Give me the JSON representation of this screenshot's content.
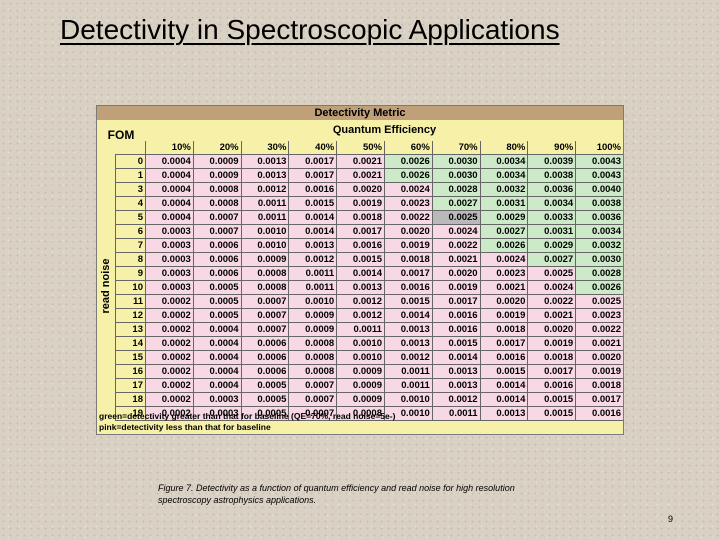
{
  "slide": {
    "title": "Detectivity in Spectroscopic Applications",
    "caption": "Figure 7. Detectivity as a function of quantum efficiency and read noise for high resolution spectroscopy astrophysics applications.",
    "page_number": "9"
  },
  "table": {
    "title": "Detectivity Metric",
    "corner_label": "FOM",
    "column_group_label": "Quantum Efficiency",
    "row_group_label": "read noise",
    "columns": [
      "10%",
      "20%",
      "30%",
      "40%",
      "50%",
      "60%",
      "70%",
      "80%",
      "90%",
      "100%"
    ],
    "rows": [
      {
        "rn": "0",
        "values": [
          "0.0004",
          "0.0009",
          "0.0013",
          "0.0017",
          "0.0021",
          "0.0026",
          "0.0030",
          "0.0034",
          "0.0039",
          "0.0043"
        ]
      },
      {
        "rn": "1",
        "values": [
          "0.0004",
          "0.0009",
          "0.0013",
          "0.0017",
          "0.0021",
          "0.0026",
          "0.0030",
          "0.0034",
          "0.0038",
          "0.0043"
        ]
      },
      {
        "rn": "3",
        "values": [
          "0.0004",
          "0.0008",
          "0.0012",
          "0.0016",
          "0.0020",
          "0.0024",
          "0.0028",
          "0.0032",
          "0.0036",
          "0.0040"
        ]
      },
      {
        "rn": "4",
        "values": [
          "0.0004",
          "0.0008",
          "0.0011",
          "0.0015",
          "0.0019",
          "0.0023",
          "0.0027",
          "0.0031",
          "0.0034",
          "0.0038"
        ]
      },
      {
        "rn": "5",
        "values": [
          "0.0004",
          "0.0007",
          "0.0011",
          "0.0014",
          "0.0018",
          "0.0022",
          "0.0025",
          "0.0029",
          "0.0033",
          "0.0036"
        ]
      },
      {
        "rn": "6",
        "values": [
          "0.0003",
          "0.0007",
          "0.0010",
          "0.0014",
          "0.0017",
          "0.0020",
          "0.0024",
          "0.0027",
          "0.0031",
          "0.0034"
        ]
      },
      {
        "rn": "7",
        "values": [
          "0.0003",
          "0.0006",
          "0.0010",
          "0.0013",
          "0.0016",
          "0.0019",
          "0.0022",
          "0.0026",
          "0.0029",
          "0.0032"
        ]
      },
      {
        "rn": "8",
        "values": [
          "0.0003",
          "0.0006",
          "0.0009",
          "0.0012",
          "0.0015",
          "0.0018",
          "0.0021",
          "0.0024",
          "0.0027",
          "0.0030"
        ]
      },
      {
        "rn": "9",
        "values": [
          "0.0003",
          "0.0006",
          "0.0008",
          "0.0011",
          "0.0014",
          "0.0017",
          "0.0020",
          "0.0023",
          "0.0025",
          "0.0028"
        ]
      },
      {
        "rn": "10",
        "values": [
          "0.0003",
          "0.0005",
          "0.0008",
          "0.0011",
          "0.0013",
          "0.0016",
          "0.0019",
          "0.0021",
          "0.0024",
          "0.0026"
        ]
      },
      {
        "rn": "11",
        "values": [
          "0.0002",
          "0.0005",
          "0.0007",
          "0.0010",
          "0.0012",
          "0.0015",
          "0.0017",
          "0.0020",
          "0.0022",
          "0.0025"
        ]
      },
      {
        "rn": "12",
        "values": [
          "0.0002",
          "0.0005",
          "0.0007",
          "0.0009",
          "0.0012",
          "0.0014",
          "0.0016",
          "0.0019",
          "0.0021",
          "0.0023"
        ]
      },
      {
        "rn": "13",
        "values": [
          "0.0002",
          "0.0004",
          "0.0007",
          "0.0009",
          "0.0011",
          "0.0013",
          "0.0016",
          "0.0018",
          "0.0020",
          "0.0022"
        ]
      },
      {
        "rn": "14",
        "values": [
          "0.0002",
          "0.0004",
          "0.0006",
          "0.0008",
          "0.0010",
          "0.0013",
          "0.0015",
          "0.0017",
          "0.0019",
          "0.0021"
        ]
      },
      {
        "rn": "15",
        "values": [
          "0.0002",
          "0.0004",
          "0.0006",
          "0.0008",
          "0.0010",
          "0.0012",
          "0.0014",
          "0.0016",
          "0.0018",
          "0.0020"
        ]
      },
      {
        "rn": "16",
        "values": [
          "0.0002",
          "0.0004",
          "0.0006",
          "0.0008",
          "0.0009",
          "0.0011",
          "0.0013",
          "0.0015",
          "0.0017",
          "0.0019"
        ]
      },
      {
        "rn": "17",
        "values": [
          "0.0002",
          "0.0004",
          "0.0005",
          "0.0007",
          "0.0009",
          "0.0011",
          "0.0013",
          "0.0014",
          "0.0016",
          "0.0018"
        ]
      },
      {
        "rn": "18",
        "values": [
          "0.0002",
          "0.0003",
          "0.0005",
          "0.0007",
          "0.0009",
          "0.0010",
          "0.0012",
          "0.0014",
          "0.0015",
          "0.0017"
        ]
      },
      {
        "rn": "19",
        "values": [
          "0.0002",
          "0.0003",
          "0.0005",
          "0.0007",
          "0.0008",
          "0.0010",
          "0.0011",
          "0.0013",
          "0.0015",
          "0.0016"
        ]
      }
    ],
    "notes": [
      "green=detectivity greater than that for baseline (QE=70%, read noise=5e-)",
      "pink=detectivity less than that for baseline"
    ],
    "baseline_value": "0.0025",
    "colors": {
      "greater_than_baseline": "#cdeac8",
      "less_than_baseline": "#f7d8e4",
      "baseline": "#b9b9b9",
      "table_background": "#f6f0a8",
      "header_band": "#c0a078"
    }
  }
}
